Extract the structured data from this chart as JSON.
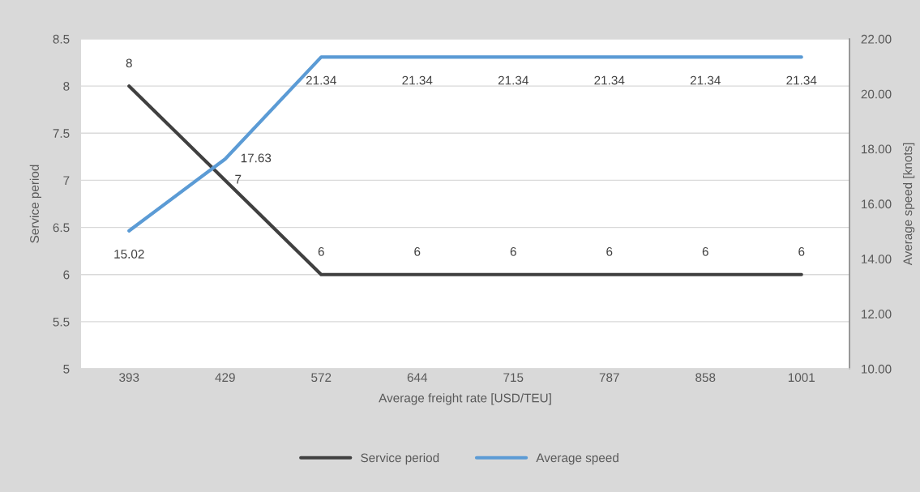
{
  "chart_data": {
    "type": "line",
    "xlabel": "Average freight rate [USD/TEU]",
    "ylabel": "Service period",
    "y2label": "Average speed [knots]",
    "categories": [
      "393",
      "429",
      "572",
      "644",
      "715",
      "787",
      "858",
      "1001"
    ],
    "series": [
      {
        "name": "Service period",
        "color": "#404040",
        "values": [
          8,
          7,
          6,
          6,
          6,
          6,
          6,
          6
        ]
      },
      {
        "name": "Average speed",
        "color": "#5b9bd5",
        "axis": "y2",
        "values": [
          15.02,
          17.63,
          21.34,
          21.34,
          21.34,
          21.34,
          21.34,
          21.34
        ]
      }
    ],
    "ylim": [
      5,
      8.5
    ],
    "yticks": [
      5,
      5.5,
      6,
      6.5,
      7,
      7.5,
      8,
      8.5
    ],
    "y2lim": [
      10,
      22
    ],
    "y2ticks": [
      {
        "value": 10,
        "label": "10.00"
      },
      {
        "value": 12,
        "label": "12.00"
      },
      {
        "value": 14,
        "label": "14.00"
      },
      {
        "value": 16,
        "label": "16.00"
      },
      {
        "value": 18,
        "label": "18.00"
      },
      {
        "value": 20,
        "label": "20.00"
      },
      {
        "value": 22,
        "label": "22.00"
      }
    ],
    "grid": "y",
    "legend": "bottom",
    "data_labels": true,
    "marker": "none",
    "line_style": "solid"
  }
}
